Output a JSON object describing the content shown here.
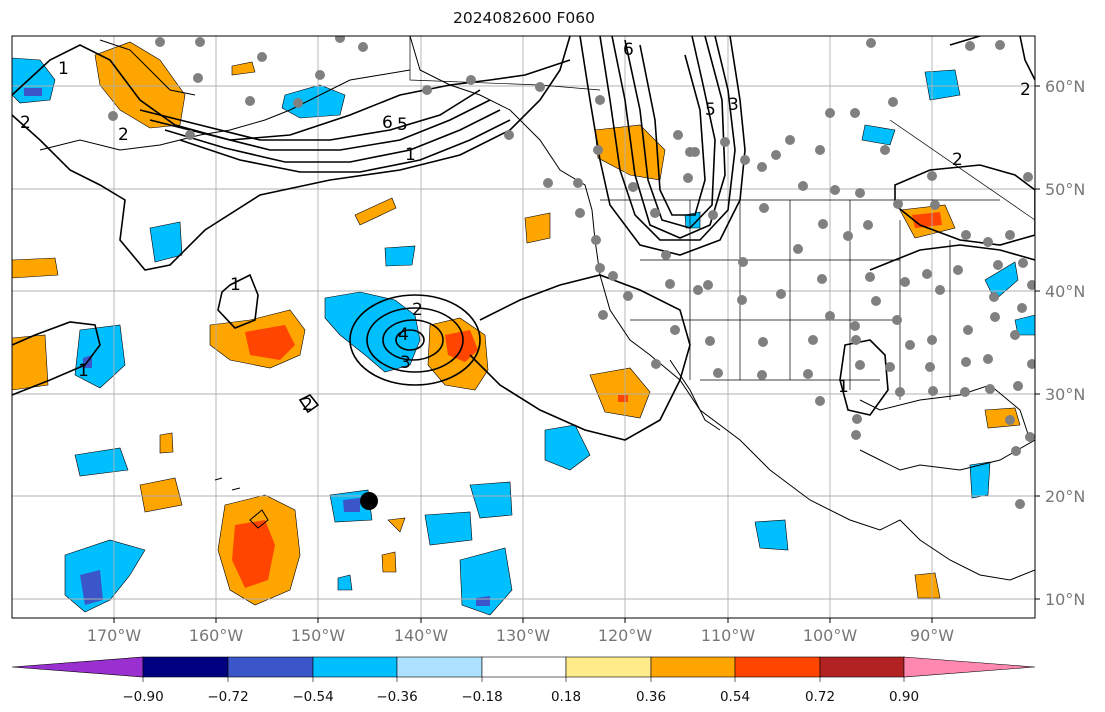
{
  "title": "2024082600 F060",
  "latitude_labels": [
    "60°N",
    "50°N",
    "40°N",
    "30°N",
    "20°N",
    "10°N"
  ],
  "longitude_labels": [
    "170°W",
    "160°W",
    "150°W",
    "140°W",
    "130°W",
    "120°W",
    "110°W",
    "100°W",
    "90°W"
  ],
  "colorbar": {
    "tick_labels": [
      "−0.90",
      "−0.72",
      "−0.54",
      "−0.36",
      "−0.18",
      "0.18",
      "0.36",
      "0.54",
      "0.72",
      "0.90"
    ],
    "colors": [
      "#9b30d0",
      "#000080",
      "#3a56c8",
      "#00bfff",
      "#aee0ff",
      "#ffffff",
      "#ffeb8a",
      "#ffa500",
      "#ff4500",
      "#b22222",
      "#ff88b0"
    ]
  },
  "contour_labels": [
    "1",
    "2",
    "3",
    "4",
    "5",
    "6",
    "1",
    "2",
    "3",
    "1",
    "2",
    "3",
    "1",
    "1",
    "2"
  ],
  "colors": {
    "orange": "#ffa500",
    "red_orange": "#ff4500",
    "blue": "#00bfff",
    "dark_blue": "#3a56c8",
    "gray_dot": "#808080",
    "contour": "#000000"
  }
}
